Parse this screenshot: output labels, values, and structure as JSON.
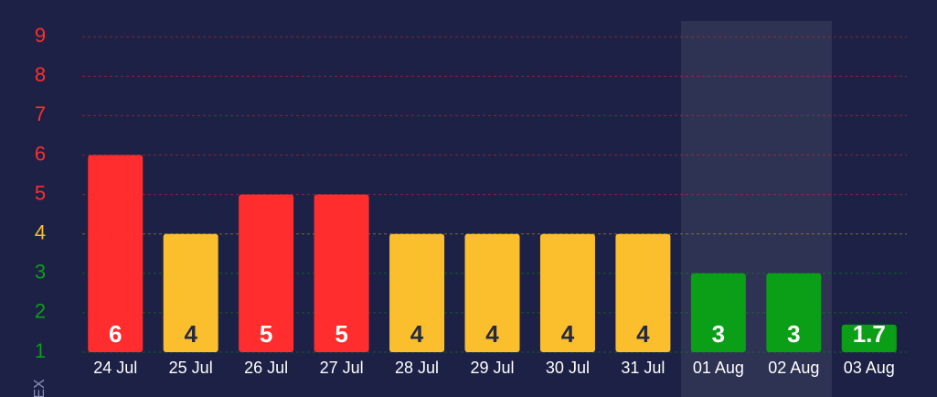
{
  "chart_data": {
    "type": "bar",
    "y_label": "EX",
    "categories": [
      "24 Jul",
      "25 Jul",
      "26 Jul",
      "27 Jul",
      "28 Jul",
      "29 Jul",
      "30 Jul",
      "31 Jul",
      "01 Aug",
      "02 Aug",
      "03 Aug"
    ],
    "values": [
      6,
      4,
      5,
      5,
      4,
      4,
      4,
      4,
      3,
      3,
      1.7
    ],
    "colors": [
      "#ff2d2d",
      "#fbbf2d",
      "#ff2d2d",
      "#ff2d2d",
      "#fbbf2d",
      "#fbbf2d",
      "#fbbf2d",
      "#fbbf2d",
      "#0a9f17",
      "#0a9f17",
      "#0a9f17"
    ],
    "label_colors": [
      "#ffffff",
      "#262a40",
      "#ffffff",
      "#ffffff",
      "#262a40",
      "#262a40",
      "#262a40",
      "#262a40",
      "#ffffff",
      "#ffffff",
      "#ffffff"
    ],
    "ylim": [
      1,
      9.4
    ],
    "yticks": [
      1,
      2,
      3,
      4,
      5,
      6,
      7,
      8,
      9
    ],
    "ytick_colors": [
      "#0a9f17",
      "#0a9f17",
      "#0a9f17",
      "#fbbf2d",
      "#ff2d2d",
      "#ff2d2d",
      "#ff2d2d",
      "#ff2d2d",
      "#ff2d2d"
    ],
    "grid": true
  }
}
